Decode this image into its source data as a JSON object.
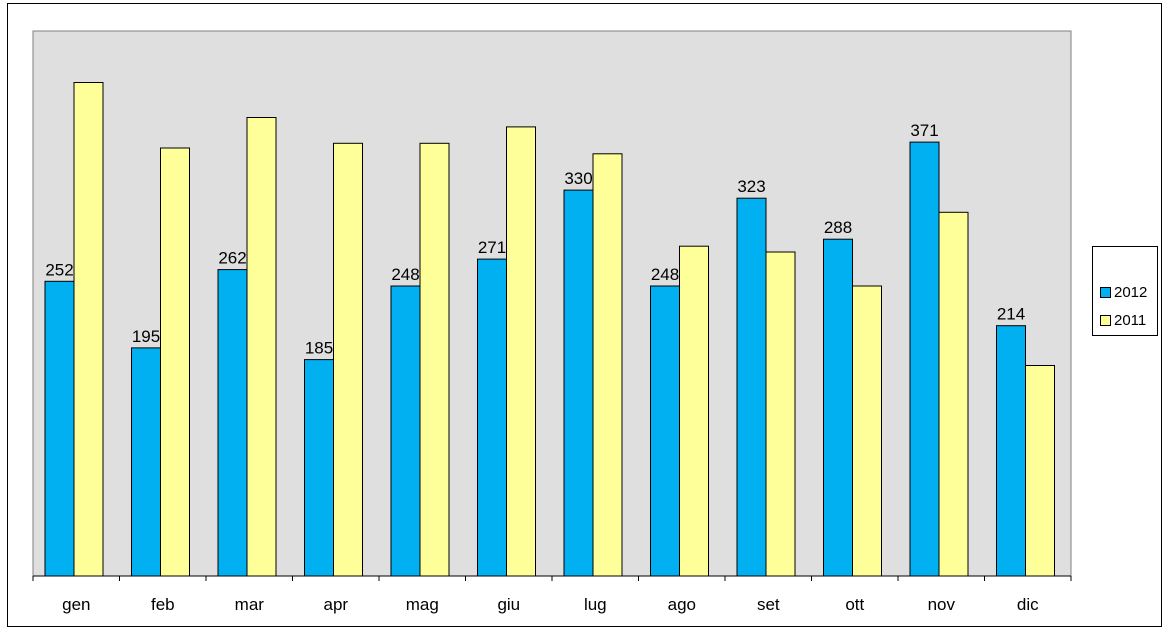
{
  "chart_data": {
    "type": "bar",
    "categories": [
      "gen",
      "feb",
      "mar",
      "apr",
      "mag",
      "giu",
      "lug",
      "ago",
      "set",
      "ott",
      "nov",
      "dic"
    ],
    "series": [
      {
        "name": "2012",
        "values": [
          252,
          195,
          262,
          185,
          248,
          271,
          330,
          248,
          323,
          288,
          371,
          214
        ],
        "color": "#00B0F0",
        "show_labels": true
      },
      {
        "name": "2011",
        "values": [
          422,
          366,
          392,
          370,
          370,
          384,
          361,
          282,
          277,
          248,
          311,
          180
        ],
        "color": "#FFFF99",
        "show_labels": false
      }
    ],
    "ylim": [
      0,
      466
    ],
    "y_axis_visible": false,
    "grid": false,
    "plot_background": "#DFDFDF",
    "legend": "right"
  }
}
